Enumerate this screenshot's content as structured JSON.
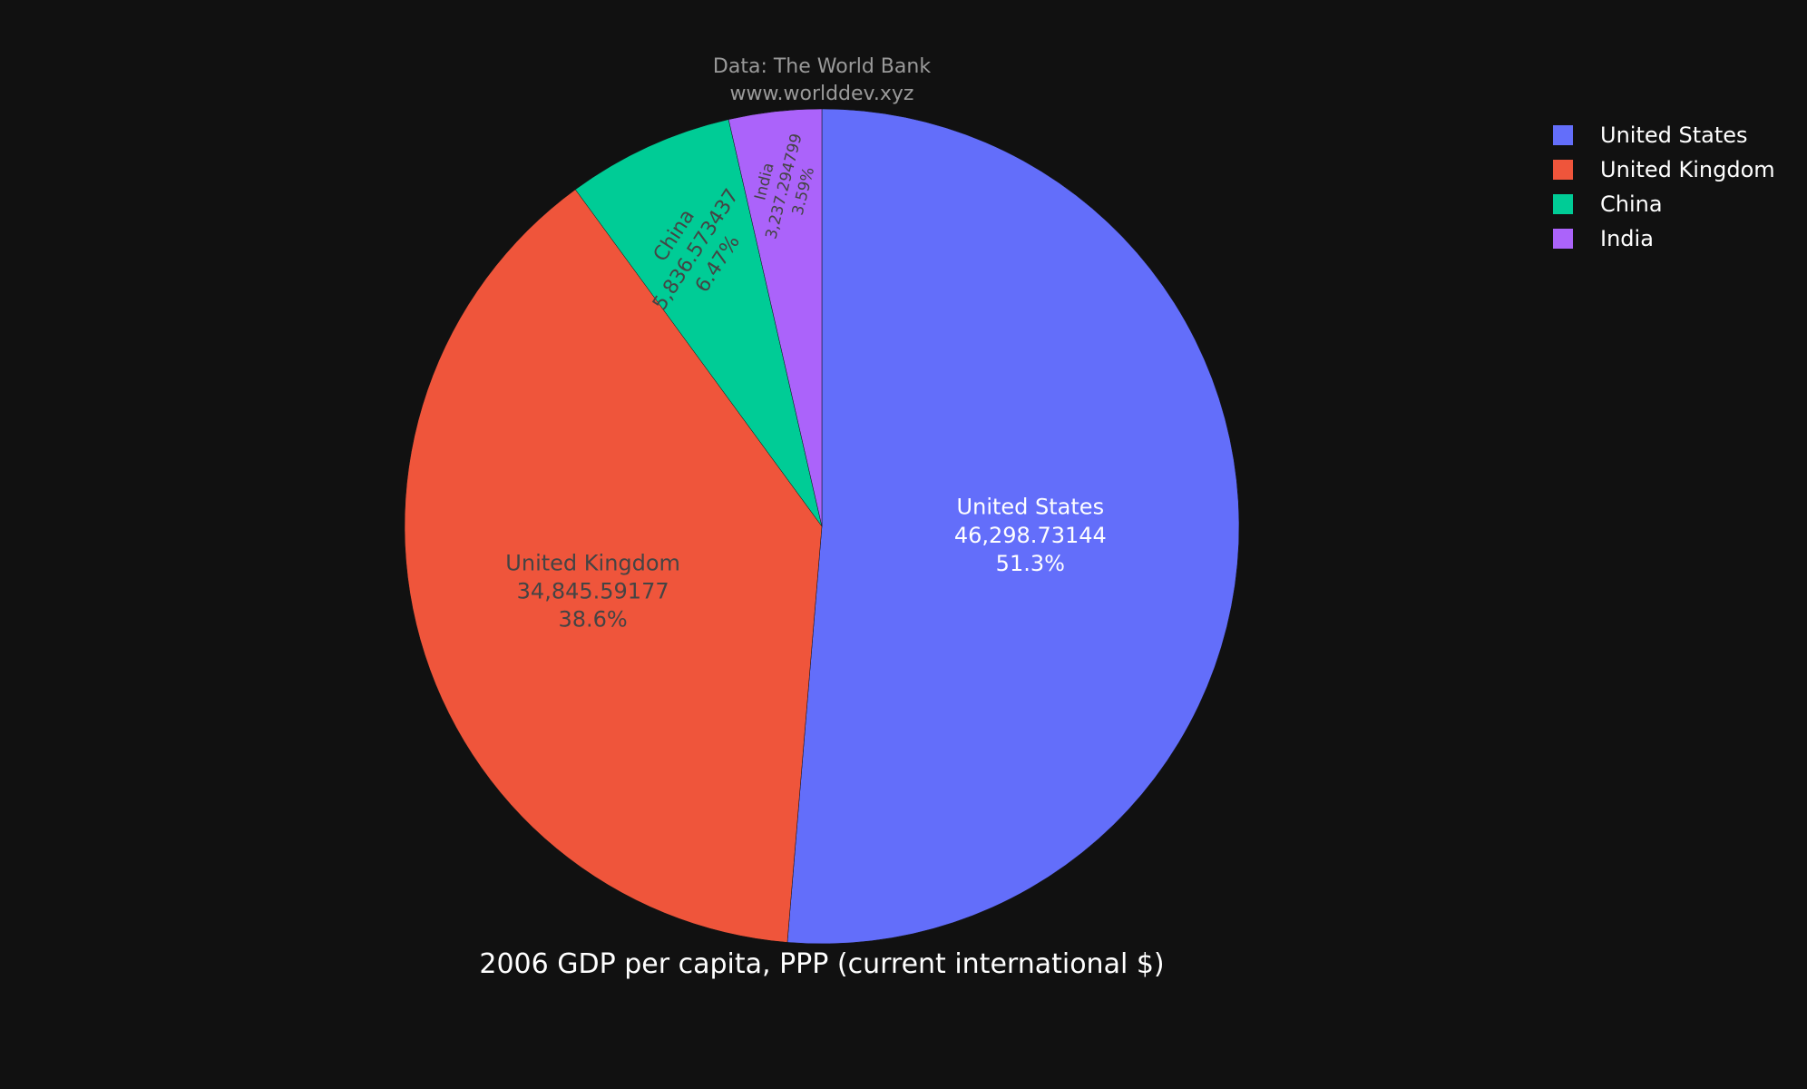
{
  "chart_data": {
    "type": "pie",
    "title": "2006 GDP per capita, PPP (current international $)",
    "source_line1": "Data: The World Bank",
    "source_line2": "www.worlddev.xyz",
    "legend_position": "top-right",
    "slices": [
      {
        "label": "United States",
        "value_text": "46,298.73144",
        "percent_text": "51.3%",
        "value": 46298.73144,
        "color": "#636efa",
        "text_color": "#ffffff"
      },
      {
        "label": "United Kingdom",
        "value_text": "34,845.59177",
        "percent_text": "38.6%",
        "value": 34845.59177,
        "color": "#ef553b",
        "text_color": "#444444"
      },
      {
        "label": "China",
        "value_text": "5,836.573437",
        "percent_text": "6.47%",
        "value": 5836.573437,
        "color": "#00cc96",
        "text_color": "#444444"
      },
      {
        "label": "India",
        "value_text": "3,237.294799",
        "percent_text": "3.59%",
        "value": 3237.294799,
        "color": "#ab63fa",
        "text_color": "#444444"
      }
    ]
  },
  "background": "#111111"
}
